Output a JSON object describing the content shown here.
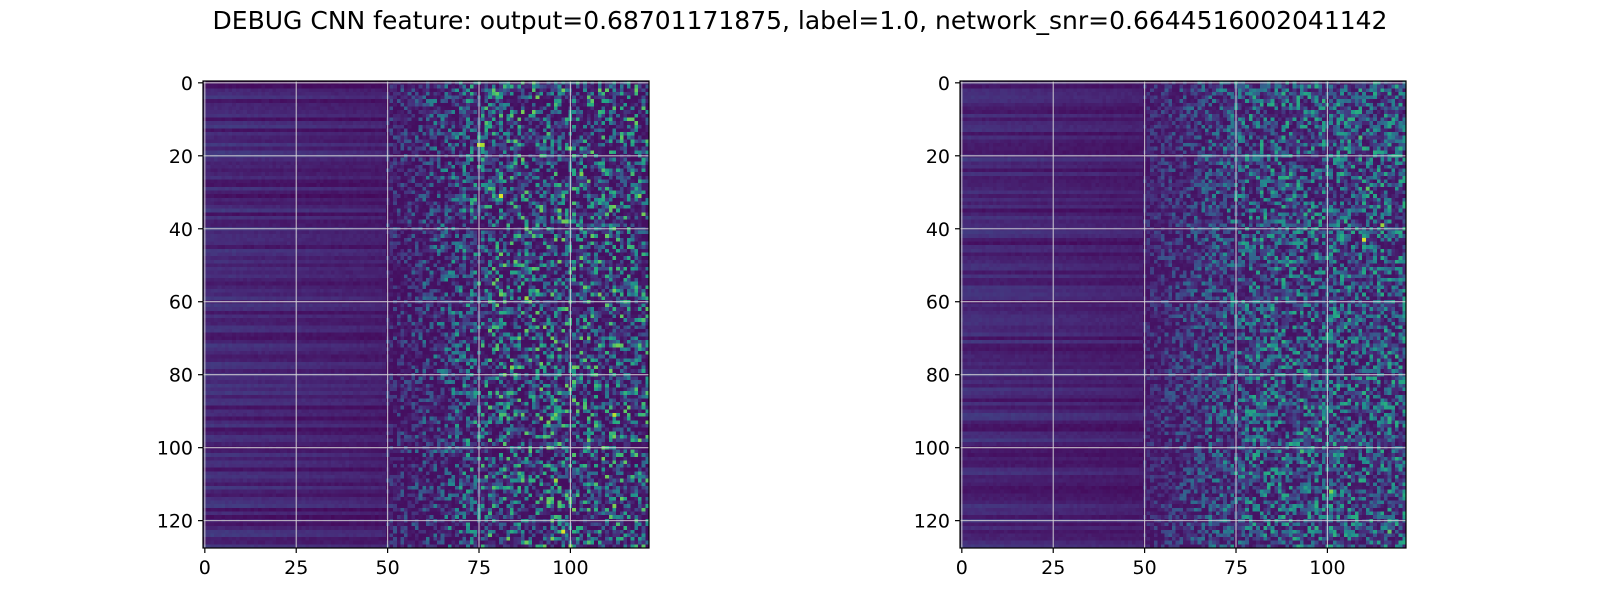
{
  "title": "DEBUG CNN feature: output=0.68701171875, label=1.0, network_snr=0.6644516002041142",
  "colors": {
    "colormap": "viridis",
    "grid": "#d9d9d9",
    "axes": "#000000",
    "background": "#ffffff"
  },
  "chart_data": [
    {
      "type": "heatmap",
      "title": "",
      "xlabel": "",
      "ylabel": "",
      "cols": 122,
      "rows": 128,
      "xlim": [
        -0.5,
        121.5
      ],
      "ylim": [
        127.5,
        -0.5
      ],
      "xticks": [
        0,
        25,
        50,
        75,
        100
      ],
      "yticks": [
        0,
        20,
        40,
        60,
        80,
        100,
        120
      ],
      "grid": true,
      "value_range": [
        0,
        1
      ],
      "pattern": "low-intensity horizontal banding for columns 0-50, sparse noisy high-intensity cells for columns 50-121",
      "hotspots": [
        {
          "x": 81,
          "y": 31,
          "v": 0.95
        },
        {
          "x": 75,
          "y": 17,
          "v": 0.9
        },
        {
          "x": 76,
          "y": 17,
          "v": 0.88
        },
        {
          "x": 88,
          "y": 59,
          "v": 0.85
        },
        {
          "x": 98,
          "y": 123,
          "v": 0.95
        },
        {
          "x": 112,
          "y": 116,
          "v": 0.8
        },
        {
          "x": 112,
          "y": 91,
          "v": 0.9
        },
        {
          "x": 96,
          "y": 109,
          "v": 0.85
        },
        {
          "x": 88,
          "y": 40,
          "v": 0.75
        },
        {
          "x": 103,
          "y": 25,
          "v": 0.8
        },
        {
          "x": 84,
          "y": 78,
          "v": 0.8
        },
        {
          "x": 100,
          "y": 127,
          "v": 0.8
        }
      ]
    },
    {
      "type": "heatmap",
      "title": "",
      "xlabel": "",
      "ylabel": "",
      "cols": 122,
      "rows": 128,
      "xlim": [
        -0.5,
        121.5
      ],
      "ylim": [
        127.5,
        -0.5
      ],
      "xticks": [
        0,
        25,
        50,
        75,
        100
      ],
      "yticks": [
        0,
        20,
        40,
        60,
        80,
        100,
        120
      ],
      "grid": true,
      "value_range": [
        0,
        1
      ],
      "pattern": "low-intensity horizontal banding for columns 0-50, denser speckled moderate-intensity cells for columns 50-121",
      "hotspots": [
        {
          "x": 110,
          "y": 43,
          "v": 0.95
        },
        {
          "x": 115,
          "y": 39,
          "v": 0.85
        },
        {
          "x": 111,
          "y": 29,
          "v": 0.75
        },
        {
          "x": 101,
          "y": 112,
          "v": 0.8
        },
        {
          "x": 117,
          "y": 123,
          "v": 0.75
        },
        {
          "x": 93,
          "y": 101,
          "v": 0.7
        },
        {
          "x": 109,
          "y": 15,
          "v": 0.7
        }
      ]
    }
  ]
}
